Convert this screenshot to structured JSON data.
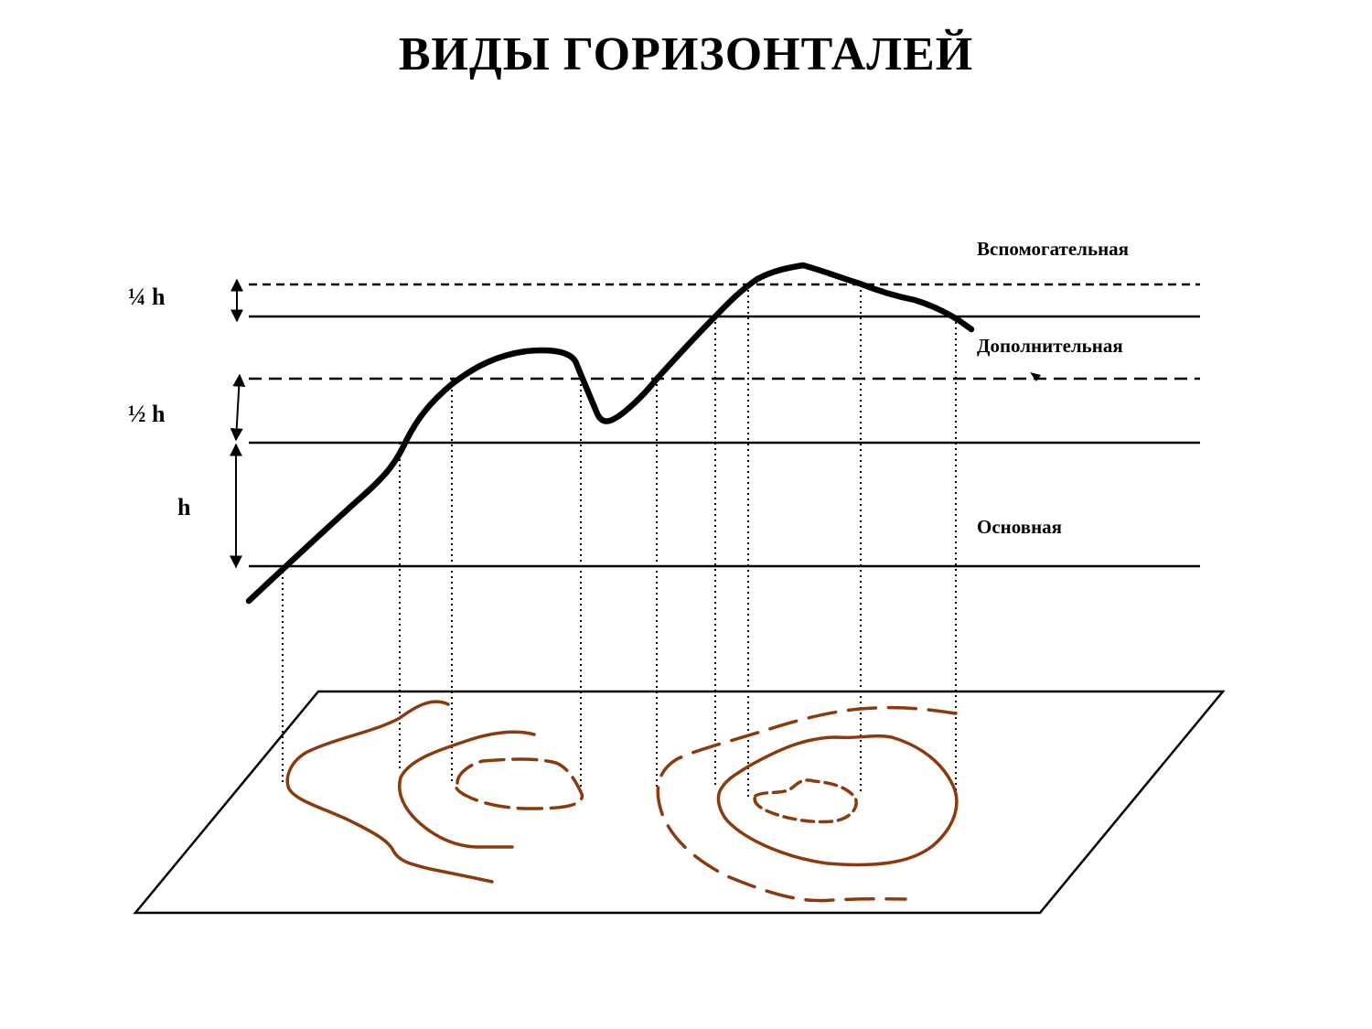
{
  "title": "ВИДЫ ГОРИЗОНТАЛЕЙ",
  "contour_types": {
    "auxiliary": "Вспомогательная",
    "additional": "Дополнительная",
    "main": "Основная"
  },
  "heights": {
    "quarter": "¼ h",
    "half": "½ h",
    "full": "h"
  },
  "colors": {
    "profile": "#000000",
    "contour": "#8B3A0E",
    "lines": "#000000"
  }
}
